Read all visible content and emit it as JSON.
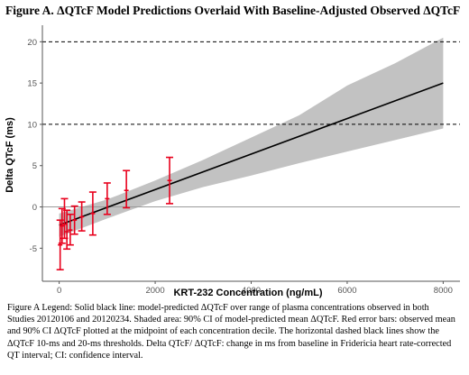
{
  "title": "Figure A. ΔQTcF Model Predictions Overlaid With Baseline-Adjusted Observed ΔQTcF",
  "legend_text": "Figure A Legend: Solid black line: model-predicted ΔQTcF over range of plasma concentrations observed in both Studies 20120106 and 20120234. Shaded area: 90% CI of model-predicted mean ΔQTcF. Red error bars: observed mean and 90% CI ΔQTcF plotted at the midpoint of each concentration decile. The horizontal dashed black lines show the ΔQTcF 10-ms and 20-ms thresholds. Delta QTcF/ ΔQTcF: change in ms from baseline in Fridericia heart rate-corrected QT interval; CI: confidence interval.",
  "colors": {
    "model_line": "#000000",
    "ci_band": "#c2c2c2",
    "error_bars": "#e8001c",
    "threshold_lines": "#000000"
  },
  "chart_data": {
    "type": "line",
    "xlabel": "KRT-232 Concentration (ng/mL)",
    "ylabel": "Delta QTcF (ms)",
    "xlim": [
      -350,
      8350
    ],
    "ylim": [
      -9,
      22
    ],
    "xticks": [
      0,
      2000,
      4000,
      6000,
      8000
    ],
    "yticks": [
      -5,
      0,
      5,
      10,
      15,
      20
    ],
    "grid": false,
    "model_line": {
      "x": [
        0,
        8000
      ],
      "y": [
        -2.2,
        15.0
      ]
    },
    "ci_band": {
      "x": [
        0,
        1000,
        2000,
        3000,
        4000,
        5000,
        6000,
        7000,
        8000
      ],
      "lower": [
        -3.6,
        -1.4,
        0.7,
        2.4,
        3.8,
        5.3,
        6.7,
        8.1,
        9.5
      ],
      "upper": [
        -0.8,
        0.9,
        3.2,
        5.7,
        8.4,
        11.1,
        14.7,
        17.4,
        20.5
      ]
    },
    "observed": {
      "x": [
        20,
        60,
        110,
        160,
        230,
        320,
        470,
        700,
        1000,
        1400,
        2300
      ],
      "mean": [
        -4.6,
        -2.3,
        -2.1,
        -3.0,
        -2.8,
        -1.6,
        -1.2,
        -0.8,
        1.0,
        2.0,
        3.2
      ],
      "lower": [
        -7.6,
        -4.4,
        -3.8,
        -5.1,
        -4.6,
        -3.3,
        -2.9,
        -3.4,
        -0.9,
        -0.1,
        0.4
      ],
      "upper": [
        -1.6,
        -0.2,
        1.0,
        -0.4,
        -0.9,
        0.1,
        0.6,
        1.8,
        2.9,
        4.4,
        6.0
      ]
    },
    "threshold_lines": [
      10,
      20
    ],
    "reference_line": 0
  }
}
